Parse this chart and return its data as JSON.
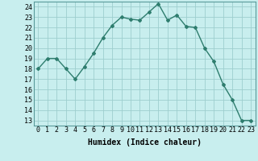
{
  "x": [
    0,
    1,
    2,
    3,
    4,
    5,
    6,
    7,
    8,
    9,
    10,
    11,
    12,
    13,
    14,
    15,
    16,
    17,
    18,
    19,
    20,
    21,
    22,
    23
  ],
  "y": [
    18,
    19,
    19,
    18,
    17,
    18.2,
    19.5,
    21,
    22.2,
    23,
    22.8,
    22.7,
    23.5,
    24.3,
    22.7,
    23.2,
    22.1,
    22,
    20,
    18.7,
    16.5,
    15,
    13,
    13
  ],
  "line_color": "#2e7d6e",
  "marker": "D",
  "marker_size": 2.0,
  "bg_color": "#c8eeee",
  "grid_color": "#9ecece",
  "xlabel": "Humidex (Indice chaleur)",
  "ylim": [
    12.5,
    24.5
  ],
  "xlim": [
    -0.5,
    23.5
  ],
  "yticks": [
    13,
    14,
    15,
    16,
    17,
    18,
    19,
    20,
    21,
    22,
    23,
    24
  ],
  "xticks": [
    0,
    1,
    2,
    3,
    4,
    5,
    6,
    7,
    8,
    9,
    10,
    11,
    12,
    13,
    14,
    15,
    16,
    17,
    18,
    19,
    20,
    21,
    22,
    23
  ],
  "xlabel_fontsize": 7,
  "tick_fontsize": 6,
  "line_width": 1.0
}
